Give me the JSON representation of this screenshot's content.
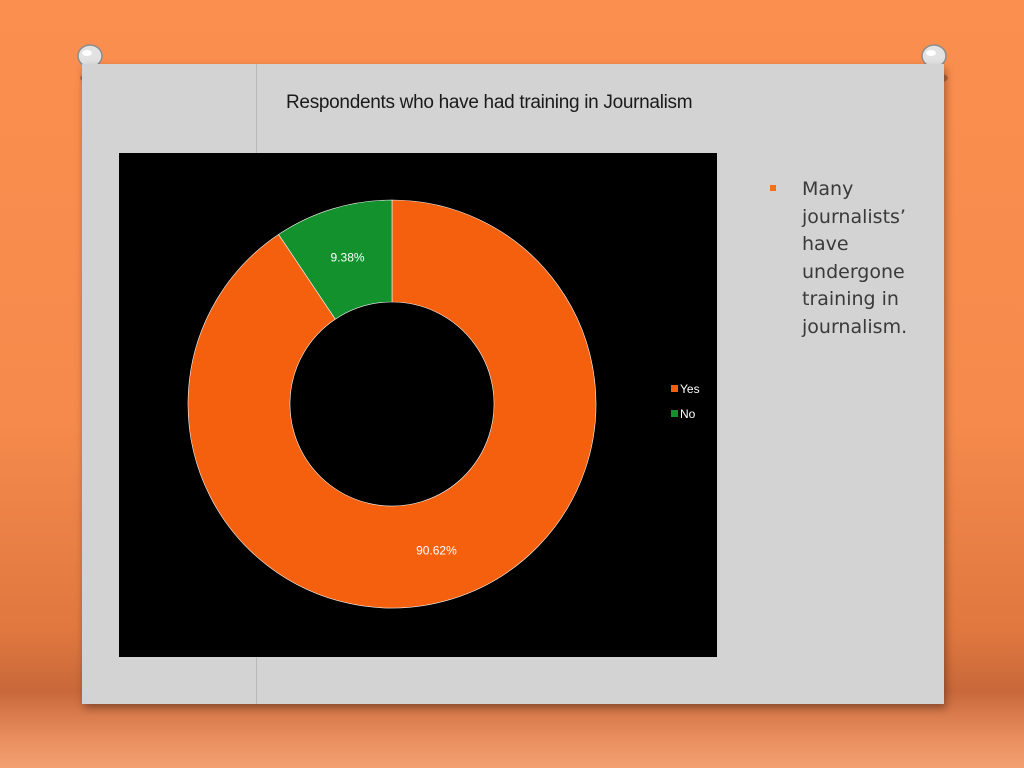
{
  "slide": {
    "title": "Respondents who have had training in Journalism",
    "bullet": "Many journalists’ have undergone training in journalism."
  },
  "chart_data": {
    "type": "pie",
    "donut": true,
    "title": "",
    "categories": [
      "Yes",
      "No"
    ],
    "values": [
      90.62,
      9.38
    ],
    "labels": [
      "90.62%",
      "9.38%"
    ],
    "colors": [
      "#f5600f",
      "#12912c"
    ],
    "legend": {
      "position": "right",
      "entries": [
        "Yes",
        "No"
      ]
    }
  },
  "colors": {
    "background": "#f58a4c",
    "board": "#d3d3d3",
    "chart_background": "#000000",
    "bullet": "#f07020"
  }
}
